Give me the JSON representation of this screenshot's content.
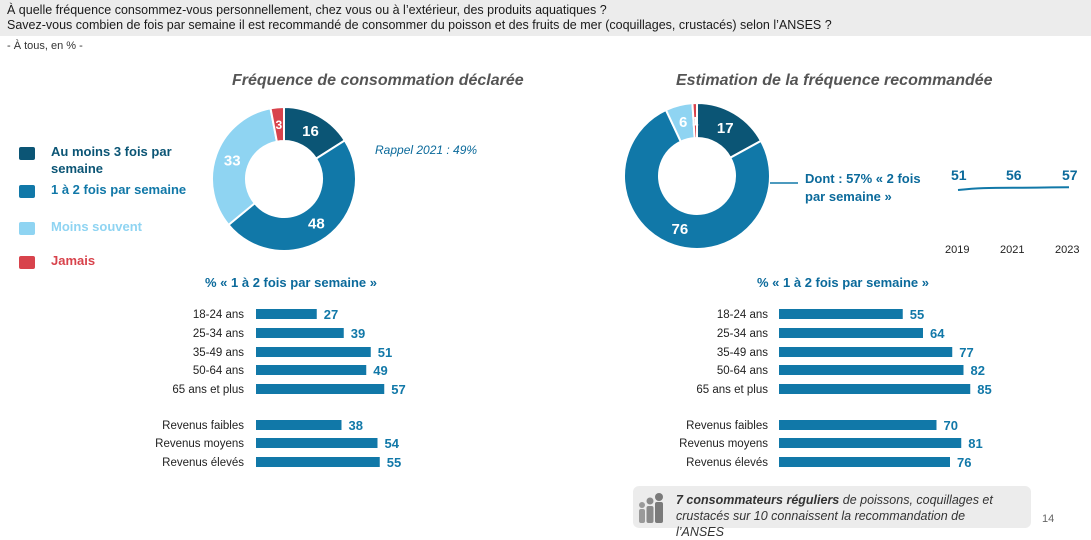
{
  "header": {
    "question_line1": "À quelle fréquence consommez-vous personnellement, chez vous ou à l’extérieur, des produits aquatiques ?",
    "question_line2": "Savez-vous combien de fois par semaine il est recommandé de consommer du poisson et des fruits de mer (coquillages, crustacés) selon l’ANSES ?",
    "base": "- À tous, en % -"
  },
  "legend": [
    {
      "label": "Au moins 3 fois par semaine",
      "color": "#0b5575"
    },
    {
      "label": "1 à 2 fois par semaine",
      "color": "#1178a8"
    },
    {
      "label": "Moins souvent",
      "color": "#8fd4f2"
    },
    {
      "label": "Jamais",
      "color": "#d8434c"
    }
  ],
  "annotations": {
    "rappel": "Rappel 2021 : 49%",
    "dont": "Dont : 57% « 2 fois par semaine »",
    "subhead_left": "% « 1 à 2 fois par semaine »",
    "subhead_right": "% « 1 à 2 fois par semaine »",
    "callout_bold": "7 consommateurs réguliers",
    "callout_rest": " de poissons, coquillages et crustacés sur 10 connaissent la recommandation de l’ANSES",
    "page_number": "14"
  },
  "chart_data": [
    {
      "type": "pie",
      "title": "Fréquence de consommation déclarée",
      "categories": [
        "Au moins 3 fois par semaine",
        "1 à 2 fois par semaine",
        "Moins souvent",
        "Jamais"
      ],
      "values": [
        16,
        48,
        33,
        3
      ],
      "colors": [
        "#0b5575",
        "#1178a8",
        "#8fd4f2",
        "#d8434c"
      ]
    },
    {
      "type": "pie",
      "title": "Estimation de la fréquence recommandée",
      "categories": [
        "Au moins 3 fois par semaine",
        "1 à 2 fois par semaine",
        "Moins souvent",
        "Jamais"
      ],
      "values": [
        17,
        76,
        6,
        1
      ],
      "colors": [
        "#0b5575",
        "#1178a8",
        "#8fd4f2",
        "#d8434c"
      ]
    },
    {
      "type": "line",
      "x": [
        "2019",
        "2021",
        "2023"
      ],
      "values": [
        51,
        56,
        57
      ]
    },
    {
      "type": "bar",
      "categories": [
        "18-24 ans",
        "25-34 ans",
        "35-49 ans",
        "50-64 ans",
        "65 ans et plus",
        "Revenus faibles",
        "Revenus moyens",
        "Revenus élevés"
      ],
      "values": [
        27,
        39,
        51,
        49,
        57,
        38,
        54,
        55
      ]
    },
    {
      "type": "bar",
      "categories": [
        "18-24 ans",
        "25-34 ans",
        "35-49 ans",
        "50-64 ans",
        "65 ans et plus",
        "Revenus faibles",
        "Revenus moyens",
        "Revenus élevés"
      ],
      "values": [
        55,
        64,
        77,
        82,
        85,
        70,
        81,
        76
      ]
    }
  ]
}
